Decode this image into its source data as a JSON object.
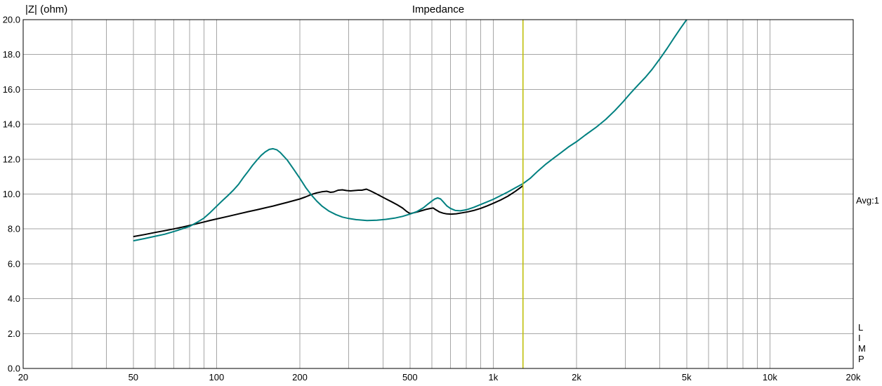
{
  "header": {
    "y_axis_label": "|Z| (ohm)",
    "title": "Impedance"
  },
  "status": {
    "avg_label": "Avg:1"
  },
  "app": {
    "name_letters": [
      "L",
      "I",
      "M",
      "P"
    ]
  },
  "chart_data": {
    "type": "line",
    "title": "Impedance",
    "ylabel": "|Z| (ohm)",
    "grid_on": true,
    "grid_color": "#a6a6a6",
    "background_color": "#ffffff",
    "x_axis": {
      "scale": "log",
      "min": 20,
      "max": 20000,
      "gridlines": [
        30,
        40,
        50,
        60,
        70,
        80,
        90,
        100,
        200,
        300,
        400,
        500,
        600,
        700,
        800,
        900,
        1000,
        2000,
        3000,
        4000,
        5000,
        6000,
        7000,
        8000,
        9000,
        10000
      ],
      "tick_labels": [
        {
          "value": 20,
          "label": "20"
        },
        {
          "value": 50,
          "label": "50"
        },
        {
          "value": 100,
          "label": "100"
        },
        {
          "value": 200,
          "label": "200"
        },
        {
          "value": 500,
          "label": "500"
        },
        {
          "value": 1000,
          "label": "1k"
        },
        {
          "value": 2000,
          "label": "2k"
        },
        {
          "value": 5000,
          "label": "5k"
        },
        {
          "value": 10000,
          "label": "10k"
        },
        {
          "value": 20000,
          "label": "20k"
        }
      ]
    },
    "y_axis": {
      "min": 0,
      "max": 20,
      "step": 2,
      "tick_labels": [
        {
          "value": 20,
          "label": "20.0"
        },
        {
          "value": 18,
          "label": "18.0"
        },
        {
          "value": 16,
          "label": "16.0"
        },
        {
          "value": 14,
          "label": "14.0"
        },
        {
          "value": 12,
          "label": "12.0"
        },
        {
          "value": 10,
          "label": "10.0"
        },
        {
          "value": 8,
          "label": "8.0"
        },
        {
          "value": 6,
          "label": "6.0"
        },
        {
          "value": 4,
          "label": "4.0"
        },
        {
          "value": 2,
          "label": "2.0"
        },
        {
          "value": 0,
          "label": "0.0"
        }
      ]
    },
    "cursor": {
      "frequency": 1282,
      "color": "#bcbc00"
    },
    "series": [
      {
        "name": "impedance-black",
        "color": "#000000",
        "points": [
          [
            50,
            7.56
          ],
          [
            55,
            7.68
          ],
          [
            60,
            7.8
          ],
          [
            65,
            7.9
          ],
          [
            70,
            8.0
          ],
          [
            75,
            8.1
          ],
          [
            80,
            8.2
          ],
          [
            85,
            8.3
          ],
          [
            90,
            8.4
          ],
          [
            95,
            8.49
          ],
          [
            100,
            8.57
          ],
          [
            110,
            8.72
          ],
          [
            120,
            8.86
          ],
          [
            130,
            8.99
          ],
          [
            140,
            9.1
          ],
          [
            150,
            9.21
          ],
          [
            160,
            9.31
          ],
          [
            170,
            9.42
          ],
          [
            180,
            9.52
          ],
          [
            190,
            9.62
          ],
          [
            200,
            9.72
          ],
          [
            210,
            9.84
          ],
          [
            220,
            9.97
          ],
          [
            230,
            10.07
          ],
          [
            240,
            10.13
          ],
          [
            250,
            10.16
          ],
          [
            258,
            10.1
          ],
          [
            265,
            10.12
          ],
          [
            275,
            10.22
          ],
          [
            285,
            10.24
          ],
          [
            295,
            10.2
          ],
          [
            305,
            10.18
          ],
          [
            315,
            10.2
          ],
          [
            325,
            10.22
          ],
          [
            335,
            10.22
          ],
          [
            348,
            10.28
          ],
          [
            360,
            10.18
          ],
          [
            375,
            10.04
          ],
          [
            390,
            9.9
          ],
          [
            410,
            9.72
          ],
          [
            430,
            9.55
          ],
          [
            450,
            9.38
          ],
          [
            470,
            9.2
          ],
          [
            485,
            9.02
          ],
          [
            500,
            8.88
          ],
          [
            515,
            8.92
          ],
          [
            535,
            8.99
          ],
          [
            555,
            9.06
          ],
          [
            575,
            9.13
          ],
          [
            595,
            9.18
          ],
          [
            607,
            9.2
          ],
          [
            620,
            9.1
          ],
          [
            640,
            8.97
          ],
          [
            660,
            8.9
          ],
          [
            680,
            8.86
          ],
          [
            705,
            8.85
          ],
          [
            735,
            8.87
          ],
          [
            770,
            8.92
          ],
          [
            810,
            8.98
          ],
          [
            850,
            9.06
          ],
          [
            900,
            9.18
          ],
          [
            950,
            9.32
          ],
          [
            1000,
            9.47
          ],
          [
            1060,
            9.65
          ],
          [
            1130,
            9.88
          ],
          [
            1200,
            10.15
          ],
          [
            1282,
            10.48
          ]
        ]
      },
      {
        "name": "impedance-teal",
        "color": "#008080",
        "points": [
          [
            50,
            7.32
          ],
          [
            55,
            7.45
          ],
          [
            60,
            7.58
          ],
          [
            65,
            7.7
          ],
          [
            70,
            7.85
          ],
          [
            75,
            8.0
          ],
          [
            80,
            8.15
          ],
          [
            85,
            8.38
          ],
          [
            90,
            8.62
          ],
          [
            95,
            8.95
          ],
          [
            100,
            9.3
          ],
          [
            105,
            9.62
          ],
          [
            110,
            9.92
          ],
          [
            115,
            10.22
          ],
          [
            120,
            10.55
          ],
          [
            125,
            10.95
          ],
          [
            130,
            11.3
          ],
          [
            135,
            11.65
          ],
          [
            140,
            11.95
          ],
          [
            145,
            12.22
          ],
          [
            150,
            12.42
          ],
          [
            155,
            12.56
          ],
          [
            160,
            12.6
          ],
          [
            165,
            12.54
          ],
          [
            170,
            12.38
          ],
          [
            180,
            11.95
          ],
          [
            190,
            11.42
          ],
          [
            200,
            10.9
          ],
          [
            210,
            10.38
          ],
          [
            220,
            9.95
          ],
          [
            230,
            9.6
          ],
          [
            240,
            9.32
          ],
          [
            255,
            9.02
          ],
          [
            270,
            8.82
          ],
          [
            285,
            8.68
          ],
          [
            300,
            8.6
          ],
          [
            320,
            8.53
          ],
          [
            350,
            8.48
          ],
          [
            380,
            8.5
          ],
          [
            410,
            8.55
          ],
          [
            440,
            8.62
          ],
          [
            470,
            8.72
          ],
          [
            500,
            8.85
          ],
          [
            530,
            9.0
          ],
          [
            560,
            9.22
          ],
          [
            580,
            9.42
          ],
          [
            600,
            9.6
          ],
          [
            615,
            9.72
          ],
          [
            630,
            9.78
          ],
          [
            645,
            9.72
          ],
          [
            660,
            9.55
          ],
          [
            680,
            9.32
          ],
          [
            700,
            9.18
          ],
          [
            730,
            9.06
          ],
          [
            760,
            9.04
          ],
          [
            800,
            9.1
          ],
          [
            850,
            9.24
          ],
          [
            900,
            9.4
          ],
          [
            950,
            9.55
          ],
          [
            1000,
            9.7
          ],
          [
            1060,
            9.9
          ],
          [
            1130,
            10.12
          ],
          [
            1200,
            10.35
          ],
          [
            1282,
            10.6
          ],
          [
            1360,
            10.9
          ],
          [
            1450,
            11.32
          ],
          [
            1550,
            11.72
          ],
          [
            1650,
            12.05
          ],
          [
            1750,
            12.35
          ],
          [
            1870,
            12.7
          ],
          [
            2000,
            13.0
          ],
          [
            2150,
            13.38
          ],
          [
            2350,
            13.82
          ],
          [
            2550,
            14.28
          ],
          [
            2750,
            14.78
          ],
          [
            2950,
            15.3
          ],
          [
            3150,
            15.82
          ],
          [
            3350,
            16.28
          ],
          [
            3550,
            16.7
          ],
          [
            3750,
            17.15
          ],
          [
            4000,
            17.75
          ],
          [
            4250,
            18.35
          ],
          [
            4500,
            18.95
          ],
          [
            4750,
            19.5
          ],
          [
            5000,
            20.0
          ]
        ]
      }
    ]
  }
}
